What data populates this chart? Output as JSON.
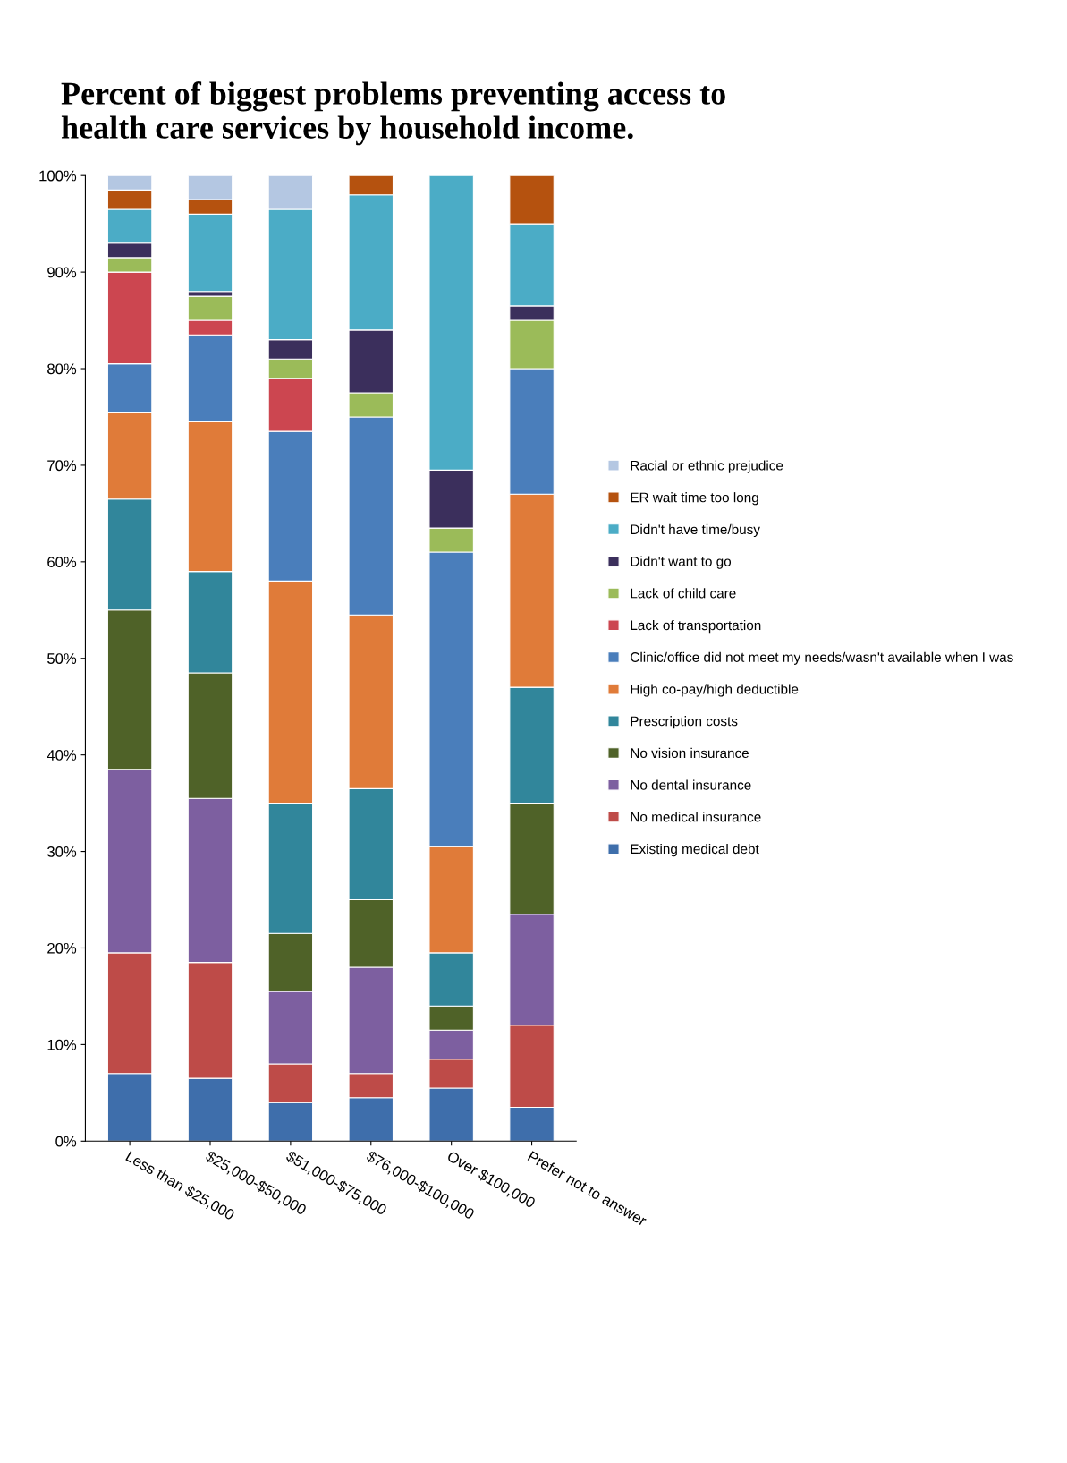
{
  "chart_data": {
    "type": "bar",
    "stacked": true,
    "title": "Percent of biggest problems preventing access to\nhealth care services by household income.",
    "categories": [
      "Less than $25,000",
      "$25,000-$50,000",
      "$51,000-$75,000",
      "$76,000-$100,000",
      "Over $100,000",
      "Prefer not to answer"
    ],
    "series": [
      {
        "name": "Existing medical debt",
        "color": "#3e6eab",
        "values": [
          7,
          6.5,
          4,
          4.5,
          5.5,
          3.5
        ]
      },
      {
        "name": "No medical insurance",
        "color": "#be4b48",
        "values": [
          12.5,
          12,
          4,
          2.5,
          3,
          8.5
        ]
      },
      {
        "name": "No dental insurance",
        "color": "#7d5fa0",
        "values": [
          19,
          17,
          7.5,
          11,
          3,
          11.5
        ]
      },
      {
        "name": "No vision insurance",
        "color": "#4f6228",
        "values": [
          16.5,
          13,
          6,
          7,
          2.5,
          11.5
        ]
      },
      {
        "name": "Prescription costs",
        "color": "#31869b",
        "values": [
          11.5,
          10.5,
          13.5,
          11.5,
          5.5,
          12
        ]
      },
      {
        "name": "High co-pay/high deductible",
        "color": "#e07b39",
        "values": [
          9,
          15.5,
          23,
          18,
          11,
          20
        ]
      },
      {
        "name": "Clinic/office did not meet my needs/wasn't available when I was",
        "color": "#4a7ebb",
        "values": [
          5,
          9,
          15.5,
          20.5,
          30.5,
          13
        ]
      },
      {
        "name": "Lack of transportation",
        "color": "#cc4650",
        "values": [
          9.5,
          1.5,
          5.5,
          0,
          0,
          0
        ]
      },
      {
        "name": "Lack of child care",
        "color": "#9bbb59",
        "values": [
          1.5,
          2.5,
          2,
          2.5,
          2.5,
          5
        ]
      },
      {
        "name": "Didn't want to go",
        "color": "#3b2f5c",
        "values": [
          1.5,
          0.5,
          2,
          6.5,
          6,
          1.5
        ]
      },
      {
        "name": "Didn't have time/busy",
        "color": "#4bacc6",
        "values": [
          3.5,
          8,
          13.5,
          14,
          30.5,
          8.5
        ]
      },
      {
        "name": "ER wait time too long",
        "color": "#b5520f",
        "values": [
          2,
          1.5,
          0,
          2,
          0,
          5
        ]
      },
      {
        "name": "Racial or ethnic prejudice",
        "color": "#b4c7e2",
        "values": [
          1.5,
          2.5,
          3.5,
          0,
          0,
          0
        ]
      }
    ],
    "ylim": [
      0,
      100
    ],
    "yticks": [
      {
        "value": 0,
        "label": "0%"
      },
      {
        "value": 10,
        "label": "10%"
      },
      {
        "value": 20,
        "label": "20%"
      },
      {
        "value": 30,
        "label": "30%"
      },
      {
        "value": 40,
        "label": "40%"
      },
      {
        "value": 50,
        "label": "50%"
      },
      {
        "value": 60,
        "label": "60%"
      },
      {
        "value": 70,
        "label": "70%"
      },
      {
        "value": 80,
        "label": "80%"
      },
      {
        "value": 90,
        "label": "90%"
      },
      {
        "value": 100,
        "label": "100%"
      }
    ],
    "grid": false,
    "legend": "right"
  }
}
